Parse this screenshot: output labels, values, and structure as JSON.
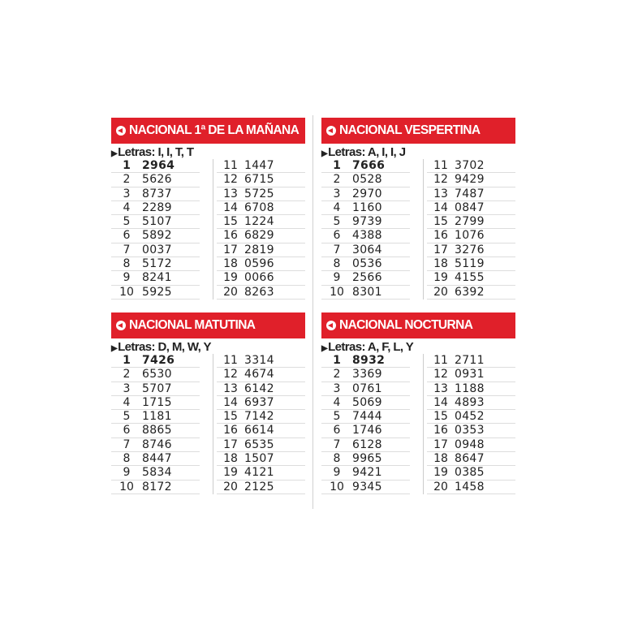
{
  "accent_color": "#e0202a",
  "icon": "circle-arrow-left-icon",
  "panels": [
    {
      "title": "NACIONAL 1ª DE LA MAÑANA",
      "letras": "Letras: I, I, T, T",
      "results": [
        "2964",
        "5626",
        "8737",
        "2289",
        "5107",
        "5892",
        "0037",
        "5172",
        "8241",
        "5925",
        "1447",
        "6715",
        "5725",
        "6708",
        "1224",
        "6829",
        "2819",
        "0596",
        "0066",
        "8263"
      ]
    },
    {
      "title": "NACIONAL VESPERTINA",
      "letras": "Letras: A, I, I, J",
      "results": [
        "7666",
        "0528",
        "2970",
        "1160",
        "9739",
        "4388",
        "3064",
        "0536",
        "2566",
        "8301",
        "3702",
        "9429",
        "7487",
        "0847",
        "2799",
        "1076",
        "3276",
        "5119",
        "4155",
        "6392"
      ]
    },
    {
      "title": "NACIONAL MATUTINA",
      "letras": "Letras: D, M, W, Y",
      "results": [
        "7426",
        "6530",
        "5707",
        "1715",
        "1181",
        "8865",
        "8746",
        "8447",
        "5834",
        "8172",
        "3314",
        "4674",
        "6142",
        "6937",
        "7142",
        "6614",
        "6535",
        "1507",
        "4121",
        "2125"
      ]
    },
    {
      "title": "NACIONAL NOCTURNA",
      "letras": "Letras: A, F, L, Y",
      "results": [
        "8932",
        "3369",
        "0761",
        "5069",
        "7444",
        "1746",
        "6128",
        "9965",
        "9421",
        "9345",
        "2711",
        "0931",
        "1188",
        "4893",
        "0452",
        "0353",
        "0948",
        "8647",
        "0385",
        "1458"
      ]
    }
  ]
}
